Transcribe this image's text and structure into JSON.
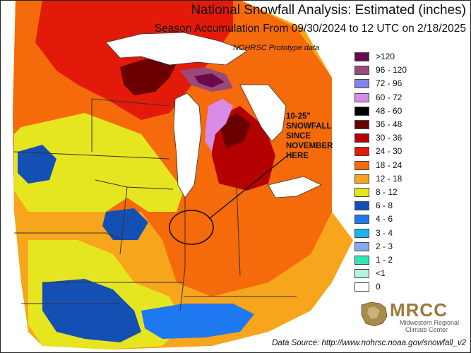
{
  "header": {
    "title": "National Snowfall Analysis: Estimated (inches)",
    "subtitle": "Season Accumulation From 09/30/2024 to 12 UTC on 2/18/2025",
    "prototype_note": "NOHRSC Prototype data"
  },
  "legend": {
    "items": [
      {
        "label": ">120",
        "color": "#6b0a4a"
      },
      {
        "label": "96 - 120",
        "color": "#9a4a78"
      },
      {
        "label": "72 - 96",
        "color": "#7f86e8"
      },
      {
        "label": "60 - 72",
        "color": "#d68be6"
      },
      {
        "label": "48 - 60",
        "color": "#000000"
      },
      {
        "label": "36 - 48",
        "color": "#6a0000"
      },
      {
        "label": "30 - 36",
        "color": "#b50000"
      },
      {
        "label": "24 - 30",
        "color": "#e31a0a"
      },
      {
        "label": "18 - 24",
        "color": "#f56a0a"
      },
      {
        "label": "12 - 18",
        "color": "#f7a51c"
      },
      {
        "label": "8 - 12",
        "color": "#e6e620"
      },
      {
        "label": "6 - 8",
        "color": "#1450b4"
      },
      {
        "label": "4 - 6",
        "color": "#1e78f0"
      },
      {
        "label": "3 - 4",
        "color": "#19b4f0"
      },
      {
        "label": "2 - 3",
        "color": "#82aaf0"
      },
      {
        "label": "1 - 2",
        "color": "#32e6b4"
      },
      {
        "label": "<1",
        "color": "#b4f5dc"
      },
      {
        "label": "0",
        "color": "#ffffff"
      }
    ]
  },
  "annotation": {
    "text": "10-25\"\nSNOWFALL\nSINCE\nNOVEMBER\nHERE"
  },
  "footer": {
    "source": "Data Source: http://www.nohrsc.noaa.gov/snowfall_v2"
  },
  "logo": {
    "name": "MRCC",
    "line1": "Midwestern Regional",
    "line2": "Climate Center"
  },
  "colors": {
    "lake": "#ffffff",
    "border": "#333333",
    "circle": "#111111"
  }
}
